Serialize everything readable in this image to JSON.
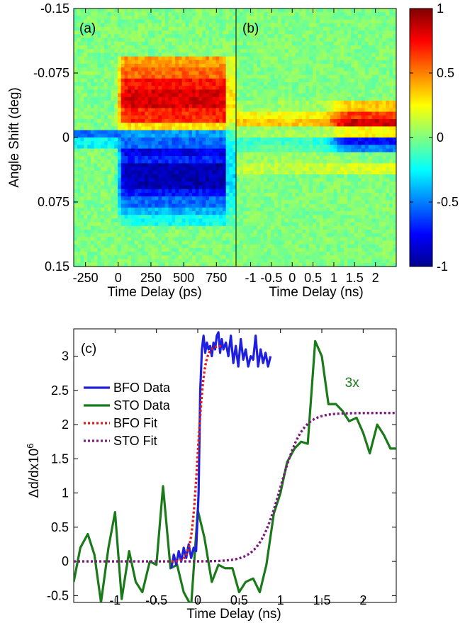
{
  "chart_data": [
    {
      "type": "heatmap",
      "panel_label": "(a)",
      "xlabel": "Time Delay (ps)",
      "ylabel": "Angle Shift (deg)",
      "xlim": [
        -340,
        900
      ],
      "ylim": [
        -0.15,
        0.15
      ],
      "y_inverted": true,
      "xticks": [
        -250,
        0,
        250,
        500,
        750
      ],
      "xtick_labels": [
        "-250",
        "0",
        "250",
        "500",
        "750"
      ],
      "yticks": [
        -0.15,
        -0.075,
        0,
        0.075,
        0.15
      ],
      "ytick_labels": [
        "-0.15",
        "-0.075",
        "0",
        "0.075",
        "0.15"
      ],
      "bands": [
        {
          "y": [
            -0.095,
            -0.082
          ],
          "before": 0.0,
          "after": 0.45
        },
        {
          "y": [
            -0.082,
            -0.07
          ],
          "before": 0.0,
          "after": 0.55
        },
        {
          "y": [
            -0.07,
            -0.055
          ],
          "before": 0.0,
          "after": 0.72
        },
        {
          "y": [
            -0.055,
            -0.035
          ],
          "before": 0.0,
          "after": 0.82
        },
        {
          "y": [
            -0.035,
            -0.015
          ],
          "before": 0.0,
          "after": 0.68
        },
        {
          "y": [
            -0.015,
            -0.008
          ],
          "before": 0.0,
          "after": 0.3
        },
        {
          "y": [
            -0.01,
            0.002
          ],
          "before": -0.55,
          "after": -0.45
        },
        {
          "y": [
            0.002,
            0.012
          ],
          "before": -0.25,
          "after": -0.55
        },
        {
          "y": [
            0.012,
            0.022
          ],
          "before": 0.0,
          "after": -0.8
        },
        {
          "y": [
            0.022,
            0.032
          ],
          "before": 0.0,
          "after": -0.68
        },
        {
          "y": [
            0.032,
            0.058
          ],
          "before": 0.0,
          "after": -0.9
        },
        {
          "y": [
            0.058,
            0.068
          ],
          "before": 0.0,
          "after": -0.72
        },
        {
          "y": [
            0.068,
            0.08
          ],
          "before": 0.0,
          "after": -0.55
        },
        {
          "y": [
            0.08,
            0.092
          ],
          "before": 0.0,
          "after": -0.4
        },
        {
          "y": [
            0.092,
            0.102
          ],
          "before": 0.0,
          "after": -0.22
        }
      ]
    },
    {
      "type": "heatmap",
      "panel_label": "(b)",
      "xlabel": "Time Delay (ns)",
      "xlim": [
        -1.35,
        2.5
      ],
      "ylim": [
        -0.15,
        0.15
      ],
      "y_inverted": true,
      "xticks": [
        -1,
        -0.5,
        0,
        0.5,
        1,
        1.5,
        2
      ],
      "xtick_labels": [
        "-1",
        "-0.5",
        "0",
        "0.5",
        "1",
        "1.5",
        "2"
      ],
      "bands": [
        {
          "y": [
            -0.042,
            -0.03
          ],
          "early": 0.05,
          "late": 0.35
        },
        {
          "y": [
            -0.03,
            -0.02
          ],
          "early": 0.25,
          "late": 0.65
        },
        {
          "y": [
            -0.02,
            -0.012
          ],
          "early": 0.35,
          "late": 0.85
        },
        {
          "y": [
            -0.012,
            -0.002
          ],
          "early": 0.05,
          "late": 0.25
        },
        {
          "y": [
            -0.002,
            0.01
          ],
          "early": -0.15,
          "late": -0.75
        },
        {
          "y": [
            0.01,
            0.018
          ],
          "early": -0.08,
          "late": -0.5
        },
        {
          "y": [
            0.018,
            0.03
          ],
          "early": 0.05,
          "late": 0.0
        },
        {
          "y": [
            0.03,
            0.042
          ],
          "early": 0.12,
          "late": 0.18
        }
      ],
      "rise_center": 1.0
    },
    {
      "type": "colorbar",
      "clim": [
        -1,
        1
      ],
      "ticks": [
        -1,
        -0.5,
        0,
        0.5,
        1
      ],
      "tick_labels": [
        "-1",
        "-0.5",
        "0",
        "0.5",
        "1"
      ],
      "colormap": "jet"
    },
    {
      "type": "line",
      "panel_label": "(c)",
      "xlabel": "Time Delay (ns)",
      "ylabel_main": "Δd/dx10",
      "ylabel_exp": "6",
      "xlim": [
        -1.5,
        2.4
      ],
      "ylim": [
        -0.6,
        3.4
      ],
      "xticks": [
        -1,
        -0.5,
        0,
        0.5,
        1,
        1.5,
        2
      ],
      "xtick_labels": [
        "-1",
        "-0.5",
        "0",
        "0.5",
        "1",
        "1.5",
        "2"
      ],
      "yticks": [
        -0.5,
        0,
        0.5,
        1,
        1.5,
        2,
        2.5,
        3
      ],
      "ytick_labels": [
        "-0.5",
        "0",
        "0.5",
        "1",
        "1.5",
        "2",
        "2.5",
        "3"
      ],
      "legend_position": "top-left",
      "annotation": {
        "text": "3x",
        "x": 1.78,
        "y": 2.55,
        "color": "#1a7a1a"
      },
      "series": [
        {
          "name": "BFO Data",
          "color": "#1f1fe0",
          "style": "solid",
          "x": [
            -0.32,
            -0.29,
            -0.26,
            -0.23,
            -0.2,
            -0.17,
            -0.14,
            -0.11,
            -0.08,
            -0.05,
            -0.02,
            0.01,
            0.03,
            0.05,
            0.07,
            0.09,
            0.11,
            0.13,
            0.15,
            0.17,
            0.19,
            0.21,
            0.23,
            0.25,
            0.27,
            0.29,
            0.31,
            0.34,
            0.37,
            0.4,
            0.43,
            0.46,
            0.49,
            0.52,
            0.55,
            0.58,
            0.61,
            0.64,
            0.67,
            0.7,
            0.73,
            0.76,
            0.79,
            0.82,
            0.85,
            0.88
          ],
          "y": [
            -0.1,
            0.1,
            -0.05,
            0.15,
            0.0,
            0.2,
            0.05,
            0.25,
            0.05,
            0.2,
            0.15,
            1.0,
            2.5,
            3.1,
            3.3,
            3.05,
            3.2,
            3.1,
            3.15,
            3.0,
            3.2,
            3.1,
            3.3,
            3.35,
            3.05,
            3.25,
            3.1,
            3.2,
            3.0,
            3.3,
            2.9,
            3.15,
            2.85,
            3.25,
            2.95,
            3.1,
            2.85,
            3.0,
            2.95,
            3.3,
            2.85,
            3.1,
            2.9,
            3.05,
            2.85,
            3.0
          ]
        },
        {
          "name": "STO Data",
          "color": "#1a7a1a",
          "style": "solid",
          "x": [
            -1.5,
            -1.42,
            -1.33,
            -1.25,
            -1.17,
            -1.08,
            -1.0,
            -0.92,
            -0.83,
            -0.75,
            -0.67,
            -0.58,
            -0.5,
            -0.42,
            -0.33,
            -0.25,
            -0.17,
            -0.08,
            0.0,
            0.08,
            0.17,
            0.25,
            0.33,
            0.42,
            0.5,
            0.58,
            0.67,
            0.75,
            0.83,
            0.92,
            1.0,
            1.08,
            1.17,
            1.25,
            1.33,
            1.42,
            1.5,
            1.58,
            1.67,
            1.75,
            1.83,
            1.92,
            2.0,
            2.08,
            2.17,
            2.25,
            2.33,
            2.4
          ],
          "y": [
            -0.3,
            0.2,
            0.4,
            0.1,
            -0.6,
            0.2,
            0.72,
            -0.55,
            0.15,
            -0.3,
            -0.45,
            0.0,
            -0.05,
            1.1,
            -0.1,
            -0.05,
            -0.45,
            -0.65,
            0.75,
            0.35,
            -0.3,
            -0.05,
            -0.1,
            -0.1,
            -0.45,
            -0.3,
            -0.25,
            -0.45,
            -0.05,
            0.7,
            1.0,
            1.45,
            1.65,
            1.75,
            1.72,
            3.22,
            3.0,
            2.3,
            2.3,
            2.2,
            2.05,
            2.1,
            1.88,
            1.58,
            2.0,
            1.85,
            1.65,
            1.65
          ]
        },
        {
          "name": "BFO Fit",
          "color": "#e01b1b",
          "style": "dotted",
          "model": "step",
          "start": 0.0,
          "end": 3.15,
          "center": 0.0,
          "width": 0.04,
          "range": [
            -0.32,
            0.3
          ]
        },
        {
          "name": "STO Fit",
          "color": "#7d1a7d",
          "style": "dotted",
          "model": "step",
          "start": 0.0,
          "end": 2.17,
          "center": 1.0,
          "width": 0.13,
          "range": [
            -1.5,
            2.4
          ]
        }
      ]
    }
  ]
}
